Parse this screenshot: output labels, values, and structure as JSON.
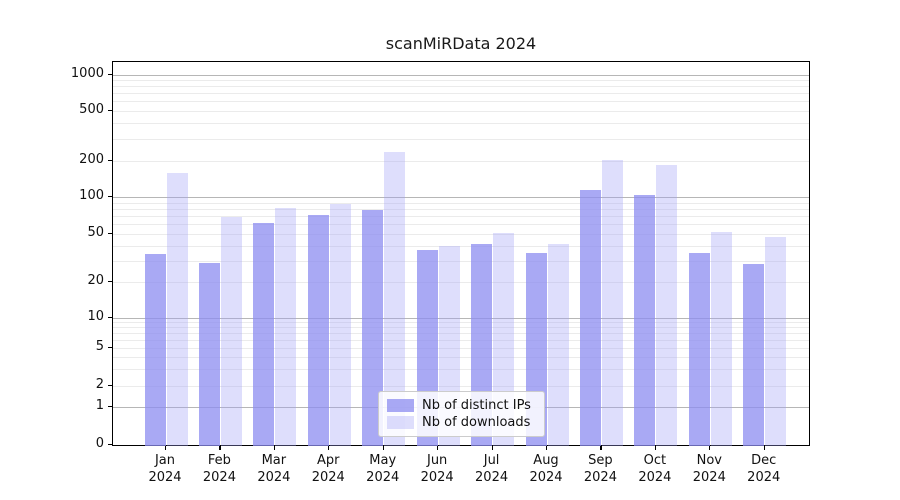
{
  "title": "scanMiRData 2024",
  "colors": {
    "distinct_ips_bar": "rgba(140,140,240,0.75)",
    "downloads_bar": "rgba(160,160,245,0.35)",
    "distinct_ips_hex": "#a8a8f2",
    "downloads_hex": "#dcdcf8",
    "grid_major": "#b6b6b6",
    "grid_minor": "#ebebeb"
  },
  "legend": {
    "items": [
      {
        "label": "Nb of distinct IPs",
        "series": "distinct_ips"
      },
      {
        "label": "Nb of downloads",
        "series": "downloads"
      }
    ]
  },
  "chart_data": {
    "type": "bar",
    "title": "scanMiRData 2024",
    "categories": [
      "Jan 2024",
      "Feb 2024",
      "Mar 2024",
      "Apr 2024",
      "May 2024",
      "Jun 2024",
      "Jul 2024",
      "Aug 2024",
      "Sep 2024",
      "Oct 2024",
      "Nov 2024",
      "Dec 2024"
    ],
    "series": [
      {
        "name": "Nb of distinct IPs",
        "values": [
          34,
          29,
          61,
          72,
          78,
          37,
          41,
          35,
          115,
          104,
          35,
          28
        ]
      },
      {
        "name": "Nb of downloads",
        "values": [
          158,
          69,
          81,
          88,
          235,
          40,
          51,
          41,
          202,
          184,
          52,
          47
        ]
      }
    ],
    "xlabel": "",
    "ylabel": "",
    "yscale": "symlog",
    "yticks": [
      0,
      1,
      2,
      5,
      10,
      20,
      50,
      100,
      200,
      500,
      1000
    ],
    "ylim": [
      0,
      1000
    ],
    "grid": "horizontal, log minor + decade major",
    "legend_position": "lower center"
  }
}
